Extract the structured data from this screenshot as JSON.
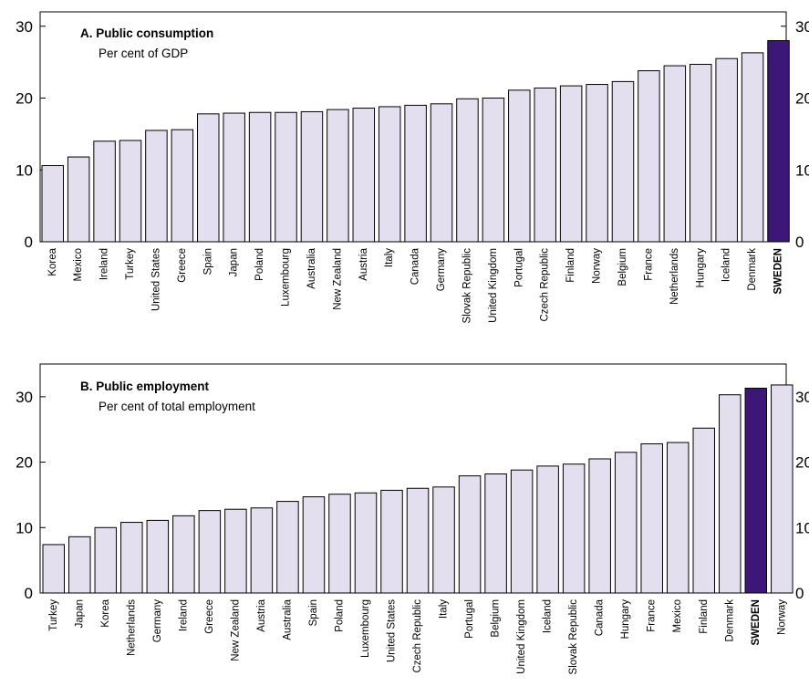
{
  "colors": {
    "bar": "#e3dfee",
    "highlight": "#3c1778",
    "bar_edge": "#000000"
  },
  "chart_data": [
    {
      "type": "bar",
      "title": "A. Public consumption",
      "subtitle": "Per cent of GDP",
      "ylim": [
        0,
        32
      ],
      "yticks": [
        0,
        10,
        20,
        30
      ],
      "highlight": "SWEDEN",
      "categories": [
        "Korea",
        "Mexico",
        "Ireland",
        "Turkey",
        "United States",
        "Greece",
        "Spain",
        "Japan",
        "Poland",
        "Luxembourg",
        "Australia",
        "New Zealand",
        "Austria",
        "Italy",
        "Canada",
        "Germany",
        "Slovak Republic",
        "United Kingdom",
        "Portugal",
        "Czech Republic",
        "Finland",
        "Norway",
        "Belgium",
        "France",
        "Netherlands",
        "Hungary",
        "Iceland",
        "Denmark",
        "SWEDEN"
      ],
      "values": [
        10.6,
        11.8,
        14.0,
        14.1,
        15.5,
        15.6,
        17.8,
        17.9,
        18.0,
        18.0,
        18.1,
        18.4,
        18.6,
        18.8,
        19.0,
        19.2,
        19.9,
        20.0,
        21.1,
        21.4,
        21.7,
        21.9,
        22.3,
        23.8,
        24.5,
        24.7,
        25.5,
        26.3,
        28.0
      ]
    },
    {
      "type": "bar",
      "title": "B. Public employment",
      "subtitle": "Per cent of total employment",
      "ylim": [
        0,
        35
      ],
      "yticks": [
        0,
        10,
        20,
        30
      ],
      "highlight": "SWEDEN",
      "categories": [
        "Turkey",
        "Japan",
        "Korea",
        "Netherlands",
        "Germany",
        "Ireland",
        "Greece",
        "New Zealand",
        "Austria",
        "Australia",
        "Spain",
        "Poland",
        "Luxembourg",
        "United States",
        "Czech Republic",
        "Italy",
        "Portugal",
        "Belgium",
        "United Kingdom",
        "Iceland",
        "Slovak Republic",
        "Canada",
        "Hungary",
        "France",
        "Mexico",
        "Finland",
        "Denmark",
        "SWEDEN",
        "Norway"
      ],
      "values": [
        7.4,
        8.6,
        10.0,
        10.8,
        11.1,
        11.8,
        12.6,
        12.8,
        13.0,
        14.0,
        14.7,
        15.1,
        15.3,
        15.7,
        16.0,
        16.2,
        17.9,
        18.2,
        18.8,
        19.4,
        19.7,
        20.5,
        21.5,
        22.8,
        23.0,
        25.2,
        30.3,
        31.3,
        31.8
      ]
    }
  ]
}
